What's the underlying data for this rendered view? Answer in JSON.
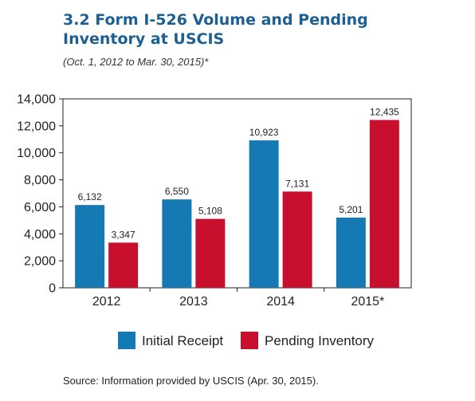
{
  "title": "3.2 Form I-526 Volume and Pending Inventory at USCIS",
  "subtitle": "(Oct. 1, 2012 to Mar. 30, 2015)*",
  "source": "Source:  Information provided by USCIS (Apr. 30, 2015).",
  "colors": {
    "initial_receipt": "#1579b4",
    "pending_inventory": "#c8102e",
    "title": "#1c5f93"
  },
  "chart_data": {
    "type": "bar",
    "categories": [
      "2012",
      "2013",
      "2014",
      "2015*"
    ],
    "series": [
      {
        "name": "Initial Receipt",
        "values": [
          6132,
          6550,
          10923,
          5201
        ],
        "labels": [
          "6,132",
          "6,550",
          "10,923",
          "5,201"
        ]
      },
      {
        "name": "Pending Inventory",
        "values": [
          3347,
          5108,
          7131,
          12435
        ],
        "labels": [
          "3,347",
          "5,108",
          "7,131",
          "12,435"
        ]
      }
    ],
    "ylim": [
      0,
      14000
    ],
    "yticks": [
      0,
      2000,
      4000,
      6000,
      8000,
      10000,
      12000,
      14000
    ],
    "ytick_labels": [
      "0",
      "2,000",
      "4,000",
      "6,000",
      "8,000",
      "10,000",
      "12,000",
      "14,000"
    ],
    "grid": false,
    "legend": "bottom"
  }
}
